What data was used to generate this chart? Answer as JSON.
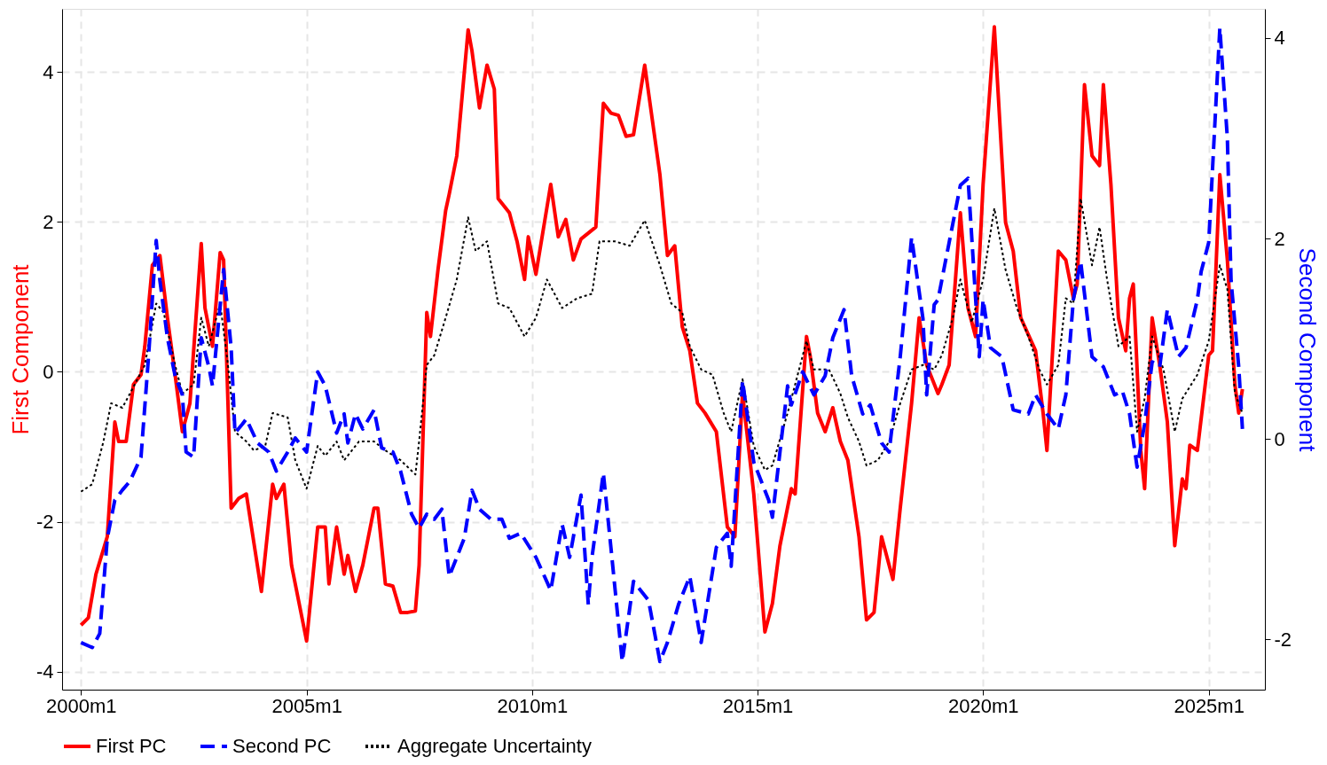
{
  "chart_data": {
    "type": "line",
    "ylabel": "First Component",
    "y2label": "Second Component",
    "xlim": [
      "1999-08",
      "2026-04"
    ],
    "ylim": [
      -4.24,
      4.84
    ],
    "y2lim": [
      -2.5,
      4.29
    ],
    "xticks": [
      {
        "value": "2000-01",
        "label": "2000m1"
      },
      {
        "value": "2005-01",
        "label": "2005m1"
      },
      {
        "value": "2010-01",
        "label": "2010m1"
      },
      {
        "value": "2015-01",
        "label": "2015m1"
      },
      {
        "value": "2020-01",
        "label": "2020m1"
      },
      {
        "value": "2025-01",
        "label": "2025m1"
      }
    ],
    "yticks": [
      -4,
      -2,
      0,
      2,
      4
    ],
    "y2ticks": [
      -2,
      0,
      2,
      4
    ],
    "grid": true,
    "legend": "bottom",
    "series": [
      {
        "name": "First PC",
        "color": "#ff0000",
        "line_style": "solid",
        "axis": "y",
        "x": [
          "2000-01",
          "2000-03",
          "2000-05",
          "2000-08",
          "2000-10",
          "2000-11",
          "2001-01",
          "2001-03",
          "2001-05",
          "2001-06",
          "2001-08",
          "2001-10",
          "2001-12",
          "2002-02",
          "2002-04",
          "2002-06",
          "2002-09",
          "2002-10",
          "2002-12",
          "2003-02",
          "2003-03",
          "2003-05",
          "2003-07",
          "2003-09",
          "2004-01",
          "2004-04",
          "2004-05",
          "2004-07",
          "2004-09",
          "2005-01",
          "2005-04",
          "2005-06",
          "2005-07",
          "2005-09",
          "2005-11",
          "2005-12",
          "2006-02",
          "2006-04",
          "2006-07",
          "2006-08",
          "2006-10",
          "2006-12",
          "2007-02",
          "2007-04",
          "2007-06",
          "2007-07",
          "2007-09",
          "2007-10",
          "2007-12",
          "2008-02",
          "2008-03",
          "2008-05",
          "2008-08",
          "2008-09",
          "2008-11",
          "2009-01",
          "2009-03",
          "2009-04",
          "2009-07",
          "2009-09",
          "2009-11",
          "2009-12",
          "2010-02",
          "2010-06",
          "2010-08",
          "2010-10",
          "2010-12",
          "2011-02",
          "2011-06",
          "2011-08",
          "2011-10",
          "2011-12",
          "2012-02",
          "2012-04",
          "2012-07",
          "2012-11",
          "2013-01",
          "2013-03",
          "2013-05",
          "2013-07",
          "2013-09",
          "2013-11",
          "2014-02",
          "2014-05",
          "2014-07",
          "2014-09",
          "2014-12",
          "2015-03",
          "2015-05",
          "2015-07",
          "2015-10",
          "2015-11",
          "2016-02",
          "2016-03",
          "2016-05",
          "2016-07",
          "2016-09",
          "2016-11",
          "2017-01",
          "2017-04",
          "2017-06",
          "2017-08",
          "2017-10",
          "2018-01",
          "2018-03",
          "2018-06",
          "2018-08",
          "2018-10",
          "2019-01",
          "2019-02",
          "2019-04",
          "2019-07",
          "2019-09",
          "2019-11",
          "2020-01",
          "2020-04",
          "2020-07",
          "2020-09",
          "2020-11",
          "2021-03",
          "2021-05",
          "2021-06",
          "2021-09",
          "2021-11",
          "2022-01",
          "2022-02",
          "2022-04",
          "2022-06",
          "2022-08",
          "2022-09",
          "2022-11",
          "2023-01",
          "2023-03",
          "2023-04",
          "2023-05",
          "2023-07",
          "2023-08",
          "2023-10",
          "2023-12",
          "2024-02",
          "2024-04",
          "2024-06",
          "2024-07",
          "2024-08",
          "2024-10",
          "2025-01",
          "2025-02",
          "2025-04",
          "2025-06",
          "2025-08",
          "2025-09",
          "2025-10"
        ],
        "values": [
          -3.38,
          -3.28,
          -2.7,
          -2.2,
          -0.67,
          -0.93,
          -0.93,
          -0.17,
          -0.04,
          0.34,
          1.42,
          1.55,
          0.72,
          -0.04,
          -0.8,
          -0.42,
          1.71,
          0.85,
          0.34,
          1.59,
          1.49,
          -1.82,
          -1.69,
          -1.63,
          -2.93,
          -1.5,
          -1.69,
          -1.5,
          -2.58,
          -3.59,
          -2.07,
          -2.07,
          -2.83,
          -2.07,
          -2.7,
          -2.45,
          -2.93,
          -2.58,
          -1.82,
          -1.82,
          -2.83,
          -2.86,
          -3.21,
          -3.21,
          -3.19,
          -2.58,
          0.79,
          0.47,
          1.36,
          2.15,
          2.37,
          2.88,
          4.56,
          4.28,
          3.52,
          4.09,
          3.77,
          2.31,
          2.12,
          1.74,
          1.23,
          1.8,
          1.3,
          2.5,
          1.8,
          2.03,
          1.49,
          1.77,
          1.93,
          3.58,
          3.45,
          3.42,
          3.14,
          3.16,
          4.09,
          2.63,
          1.55,
          1.68,
          0.6,
          0.28,
          -0.42,
          -0.55,
          -0.8,
          -2.07,
          -2.2,
          -0.29,
          -1.63,
          -3.47,
          -3.09,
          -2.32,
          -1.56,
          -1.63,
          0.47,
          0.22,
          -0.55,
          -0.8,
          -0.48,
          -0.93,
          -1.18,
          -2.2,
          -3.31,
          -3.21,
          -2.2,
          -2.77,
          -1.82,
          -0.42,
          0.72,
          0.09,
          -0.29,
          -0.17,
          0.09,
          2.12,
          0.85,
          0.47,
          2.5,
          4.6,
          1.99,
          1.61,
          0.72,
          0.28,
          -0.55,
          -1.05,
          1.61,
          1.49,
          0.98,
          1.17,
          3.83,
          2.88,
          2.75,
          3.83,
          2.5,
          0.72,
          0.28,
          0.98,
          1.17,
          -1.05,
          -1.56,
          0.72,
          0.09,
          -0.67,
          -2.32,
          -1.43,
          -1.56,
          -0.98,
          -1.05,
          0.22,
          0.28,
          2.63,
          1.49,
          -0.17,
          -0.55,
          -0.23
        ]
      },
      {
        "name": "Second PC",
        "color": "#0000ff",
        "line_style": "dashed",
        "axis": "y2",
        "x": [
          "2000-01",
          "2000-04",
          "2000-06",
          "2000-08",
          "2000-10",
          "2000-12",
          "2001-02",
          "2001-05",
          "2001-07",
          "2001-09",
          "2001-10",
          "2001-12",
          "2002-02",
          "2002-04",
          "2002-05",
          "2002-07",
          "2002-09",
          "2002-11",
          "2002-12",
          "2003-03",
          "2003-05",
          "2003-06",
          "2003-08",
          "2003-09",
          "2003-12",
          "2004-03",
          "2004-05",
          "2004-08",
          "2004-10",
          "2005-01",
          "2005-02",
          "2005-04",
          "2005-06",
          "2005-09",
          "2005-11",
          "2005-12",
          "2006-02",
          "2006-04",
          "2006-07",
          "2006-09",
          "2006-12",
          "2007-02",
          "2007-05",
          "2007-07",
          "2007-09",
          "2007-11",
          "2008-01",
          "2008-03",
          "2008-07",
          "2008-09",
          "2008-11",
          "2009-02",
          "2009-05",
          "2009-07",
          "2009-10",
          "2010-02",
          "2010-06",
          "2010-09",
          "2010-11",
          "2011-02",
          "2011-04",
          "2011-05",
          "2011-08",
          "2011-10",
          "2012-01",
          "2012-04",
          "2012-08",
          "2012-11",
          "2013-01",
          "2013-04",
          "2013-07",
          "2013-10",
          "2014-02",
          "2014-05",
          "2014-06",
          "2014-09",
          "2014-12",
          "2015-04",
          "2015-05",
          "2015-09",
          "2015-10",
          "2016-01",
          "2016-04",
          "2016-07",
          "2016-09",
          "2016-12",
          "2017-02",
          "2017-05",
          "2017-07",
          "2017-10",
          "2017-12",
          "2018-03",
          "2018-06",
          "2018-09",
          "2018-10",
          "2018-12",
          "2019-01",
          "2019-04",
          "2019-07",
          "2019-09",
          "2019-12",
          "2020-01",
          "2020-03",
          "2020-06",
          "2020-09",
          "2021-01",
          "2021-03",
          "2021-06",
          "2021-09",
          "2021-11",
          "2022-01",
          "2022-03",
          "2022-06",
          "2022-09",
          "2022-12",
          "2023-02",
          "2023-04",
          "2023-06",
          "2023-08",
          "2023-10",
          "2023-12",
          "2024-02",
          "2024-05",
          "2024-07",
          "2024-10",
          "2024-11",
          "2025-01",
          "2025-04",
          "2025-06",
          "2025-07",
          "2025-09",
          "2025-10"
        ],
        "values": [
          -2.03,
          -2.08,
          -1.94,
          -0.99,
          -0.61,
          -0.51,
          -0.42,
          -0.18,
          0.82,
          1.98,
          1.58,
          1.01,
          0.63,
          0.44,
          -0.13,
          -0.18,
          1.01,
          0.72,
          0.53,
          1.69,
          0.91,
          0.06,
          0.15,
          0.2,
          -0.04,
          -0.13,
          -0.32,
          -0.13,
          0.01,
          -0.13,
          0.15,
          0.67,
          0.53,
          0.06,
          0.25,
          -0.04,
          0.25,
          0.1,
          0.29,
          -0.09,
          -0.13,
          -0.32,
          -0.75,
          -0.89,
          -0.75,
          -0.8,
          -0.7,
          -1.37,
          -0.99,
          -0.51,
          -0.7,
          -0.8,
          -0.8,
          -0.99,
          -0.94,
          -1.18,
          -1.51,
          -0.85,
          -1.18,
          -0.56,
          -1.65,
          -1.18,
          -0.34,
          -1.08,
          -2.22,
          -1.42,
          -1.61,
          -2.22,
          -2.03,
          -1.65,
          -1.37,
          -2.03,
          -1.08,
          -0.94,
          -1.27,
          0.58,
          -0.23,
          -0.61,
          -0.78,
          0.53,
          0.34,
          0.67,
          0.44,
          0.63,
          1.01,
          1.29,
          0.63,
          0.25,
          0.34,
          -0.04,
          -0.13,
          0.82,
          2.01,
          1.2,
          0.44,
          1.34,
          1.39,
          1.96,
          2.53,
          2.6,
          0.82,
          1.39,
          0.91,
          0.82,
          0.29,
          0.25,
          0.44,
          0.25,
          0.1,
          0.44,
          1.39,
          1.77,
          0.82,
          0.72,
          0.44,
          0.48,
          0.25,
          -0.28,
          0.15,
          0.77,
          0.72,
          1.29,
          0.82,
          0.91,
          1.39,
          1.67,
          1.96,
          4.1,
          3.0,
          1.58,
          0.72,
          0.1
        ]
      },
      {
        "name": "Aggregate Uncertainty",
        "color": "#000000",
        "line_style": "dotted",
        "axis": "y",
        "x": [
          "2000-01",
          "2000-04",
          "2000-07",
          "2000-09",
          "2000-12",
          "2001-02",
          "2001-06",
          "2001-09",
          "2001-11",
          "2002-02",
          "2002-04",
          "2002-07",
          "2002-09",
          "2002-11",
          "2003-02",
          "2003-04",
          "2003-06",
          "2003-09",
          "2003-11",
          "2004-02",
          "2004-04",
          "2004-08",
          "2004-10",
          "2005-01",
          "2005-04",
          "2005-06",
          "2005-09",
          "2005-11",
          "2006-03",
          "2006-07",
          "2006-10",
          "2007-02",
          "2007-06",
          "2007-07",
          "2007-09",
          "2007-11",
          "2008-02",
          "2008-05",
          "2008-08",
          "2008-10",
          "2009-01",
          "2009-04",
          "2009-07",
          "2009-11",
          "2010-02",
          "2010-05",
          "2010-09",
          "2011-01",
          "2011-05",
          "2011-07",
          "2011-11",
          "2012-03",
          "2012-07",
          "2012-11",
          "2013-02",
          "2013-05",
          "2013-07",
          "2013-10",
          "2014-01",
          "2014-04",
          "2014-06",
          "2014-09",
          "2014-12",
          "2015-03",
          "2015-05",
          "2015-09",
          "2015-11",
          "2016-02",
          "2016-04",
          "2016-08",
          "2016-11",
          "2017-01",
          "2017-04",
          "2017-06",
          "2017-09",
          "2017-12",
          "2018-03",
          "2018-06",
          "2018-09",
          "2018-12",
          "2019-02",
          "2019-05",
          "2019-07",
          "2019-10",
          "2020-01",
          "2020-04",
          "2020-07",
          "2020-10",
          "2021-01",
          "2021-04",
          "2021-06",
          "2021-09",
          "2021-11",
          "2022-01",
          "2022-03",
          "2022-06",
          "2022-08",
          "2022-10",
          "2023-01",
          "2023-04",
          "2023-06",
          "2023-08",
          "2023-10",
          "2024-01",
          "2024-04",
          "2024-06",
          "2024-10",
          "2025-01",
          "2025-04",
          "2025-06",
          "2025-08",
          "2025-10"
        ],
        "values": [
          -1.6,
          -1.5,
          -0.93,
          -0.42,
          -0.48,
          -0.29,
          0.09,
          0.91,
          0.79,
          0.09,
          -0.29,
          -0.17,
          0.72,
          0.34,
          0.91,
          0.15,
          -0.8,
          -0.93,
          -1.05,
          -0.99,
          -0.55,
          -0.61,
          -1.18,
          -1.56,
          -0.99,
          -1.12,
          -0.93,
          -1.18,
          -0.93,
          -0.93,
          -1.05,
          -1.18,
          -1.37,
          -0.93,
          0.09,
          0.22,
          0.72,
          1.23,
          2.06,
          1.61,
          1.74,
          0.91,
          0.85,
          0.47,
          0.72,
          1.23,
          0.85,
          0.98,
          1.04,
          1.74,
          1.74,
          1.68,
          2.02,
          1.42,
          0.91,
          0.79,
          0.34,
          0.03,
          -0.04,
          -0.55,
          -0.8,
          -0.1,
          -0.99,
          -1.31,
          -1.25,
          -0.55,
          -0.17,
          0.41,
          0.03,
          0.03,
          -0.29,
          -0.61,
          -0.93,
          -1.25,
          -1.18,
          -0.93,
          -0.42,
          0.03,
          0.09,
          0.03,
          0.22,
          0.72,
          1.23,
          0.66,
          1.23,
          2.18,
          1.36,
          0.85,
          0.47,
          0.03,
          -0.17,
          0.09,
          0.98,
          0.91,
          2.31,
          1.42,
          1.93,
          1.23,
          0.34,
          0.47,
          -0.8,
          -0.36,
          0.47,
          0.03,
          -0.8,
          -0.36,
          -0.04,
          0.41,
          1.42,
          1.1,
          -0.29,
          -0.55
        ]
      }
    ]
  }
}
